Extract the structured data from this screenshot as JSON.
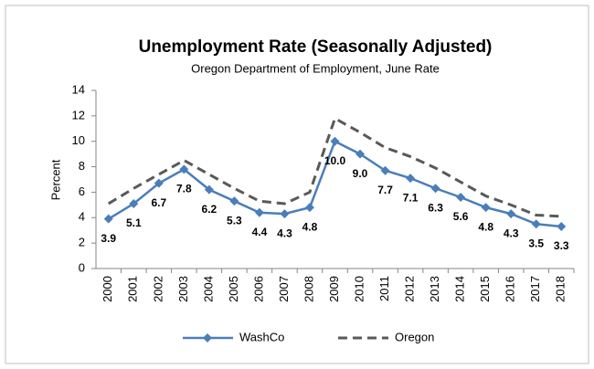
{
  "chart_data": {
    "type": "line",
    "title": "Unemployment Rate (Seasonally Adjusted)",
    "subtitle": "Oregon Department of Employment, June Rate",
    "y_label": "Percent",
    "categories": [
      "2000",
      "2001",
      "2002",
      "2003",
      "2004",
      "2005",
      "2006",
      "2007",
      "2008",
      "2009",
      "2010",
      "2011",
      "2012",
      "2013",
      "2014",
      "2015",
      "2016",
      "2017",
      "2018"
    ],
    "series": [
      {
        "name": "WashCo",
        "color": "#4a7ebb",
        "dash": false,
        "values": [
          3.9,
          5.1,
          6.7,
          7.8,
          6.2,
          5.3,
          4.4,
          4.3,
          4.8,
          10.0,
          9.0,
          7.7,
          7.1,
          6.3,
          5.6,
          4.8,
          4.3,
          3.5,
          3.3
        ],
        "value_labels": [
          "3.9",
          "5.1",
          "6.7",
          "7.8",
          "6.2",
          "5.3",
          "4.4",
          "4.3",
          "4.8",
          "10.0",
          "9.0",
          "7.7",
          "7.1",
          "6.3",
          "5.6",
          "4.8",
          "4.3",
          "3.5",
          "3.3"
        ]
      },
      {
        "name": "Oregon",
        "color": "#595959",
        "dash": true,
        "values": [
          5.1,
          6.3,
          7.4,
          8.5,
          7.4,
          6.3,
          5.3,
          5.1,
          6.0,
          11.8,
          10.7,
          9.5,
          8.8,
          7.9,
          6.8,
          5.7,
          5.0,
          4.2,
          4.1
        ]
      }
    ],
    "ylim": [
      0,
      14
    ],
    "yticks": [
      0,
      2,
      4,
      6,
      8,
      10,
      12,
      14
    ],
    "grid": false,
    "legend": "bottom"
  }
}
